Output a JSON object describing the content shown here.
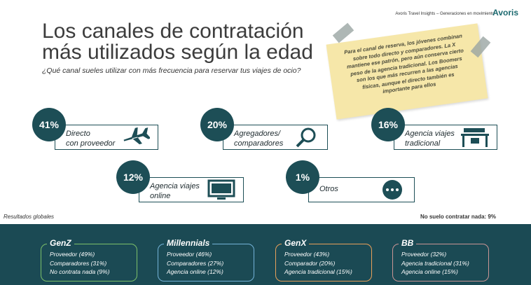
{
  "header": {
    "brand_line": "Avoris Travel Insights – Generaciones en movimiento",
    "logo": "Avoris"
  },
  "title": [
    "Los canales de contratación",
    "más utilizados según la edad"
  ],
  "subtitle": "¿Qué canal sueles utilizar con más frecuencia para reservar tus viajes de ocio?",
  "note": [
    "Para el canal de reserva, los jóvenes combinan",
    "sobre todo directo y comparadores. La X",
    "mantiene ese patrón, pero aún conserva cierto",
    "peso de la agencia tradicional. Los Boomers",
    "son los que más recurren a las agencias",
    "físicas, aunque el directo también es",
    "importante para ellos"
  ],
  "cards": [
    {
      "percent": "41%",
      "label": [
        "Directo",
        "con proveedor"
      ]
    },
    {
      "percent": "20%",
      "label": [
        "Agregadores/",
        "comparadores"
      ]
    },
    {
      "percent": "16%",
      "label": [
        "Agencia viajes",
        "tradicional"
      ]
    },
    {
      "percent": "12%",
      "label": [
        "Agencia viajes",
        "online"
      ]
    },
    {
      "percent": "1%",
      "label": [
        "Otros"
      ]
    }
  ],
  "footnote_left": "Resultados globales",
  "footnote_right": "No suelo contratar nada: 9%",
  "generations": [
    {
      "name": "GenZ",
      "items": [
        "Proveedor (49%)",
        "Comparadores (31%)",
        "No contrata nada (9%)"
      ]
    },
    {
      "name": "Millennials",
      "items": [
        "Proveedor (46%)",
        "Comparadores (27%)",
        "Agencia online (12%)"
      ]
    },
    {
      "name": "GenX",
      "items": [
        "Proveedor (43%)",
        "Comparador (20%)",
        "Agencia tradicional (15%)"
      ]
    },
    {
      "name": "BB",
      "items": [
        "Proveedor (32%)",
        "Agencia tradicional  (31%)",
        "Agencia online (15%)"
      ]
    }
  ]
}
